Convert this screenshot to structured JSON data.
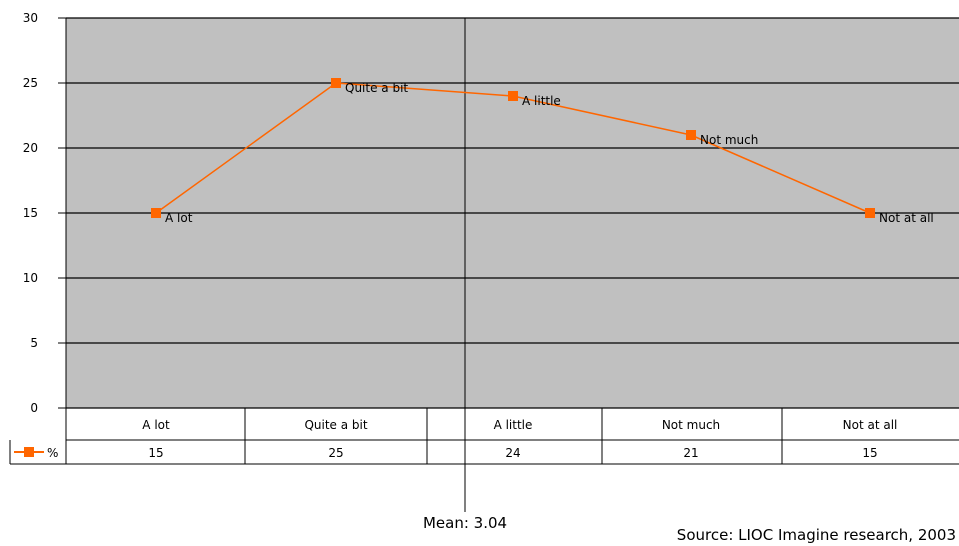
{
  "chart_data": {
    "type": "line",
    "categories": [
      "A lot",
      "Quite a bit",
      "A little",
      "Not much",
      "Not at all"
    ],
    "series": [
      {
        "name": "%",
        "values": [
          15,
          25,
          24,
          21,
          15
        ],
        "color": "#ff6600"
      }
    ],
    "point_labels": [
      "A lot",
      "Quite a bit",
      "A little",
      "Not much",
      "Not at all"
    ],
    "table_values": [
      "15",
      "25",
      "24",
      "21",
      "15"
    ],
    "ylim": [
      0,
      30
    ],
    "yticks": [
      0,
      5,
      10,
      15,
      20,
      25,
      30
    ],
    "grid": true,
    "plot_background": "#c0c0c0",
    "mean_label": "Mean: 3.04",
    "source": "Source: LIOC Imagine research, 2003"
  }
}
